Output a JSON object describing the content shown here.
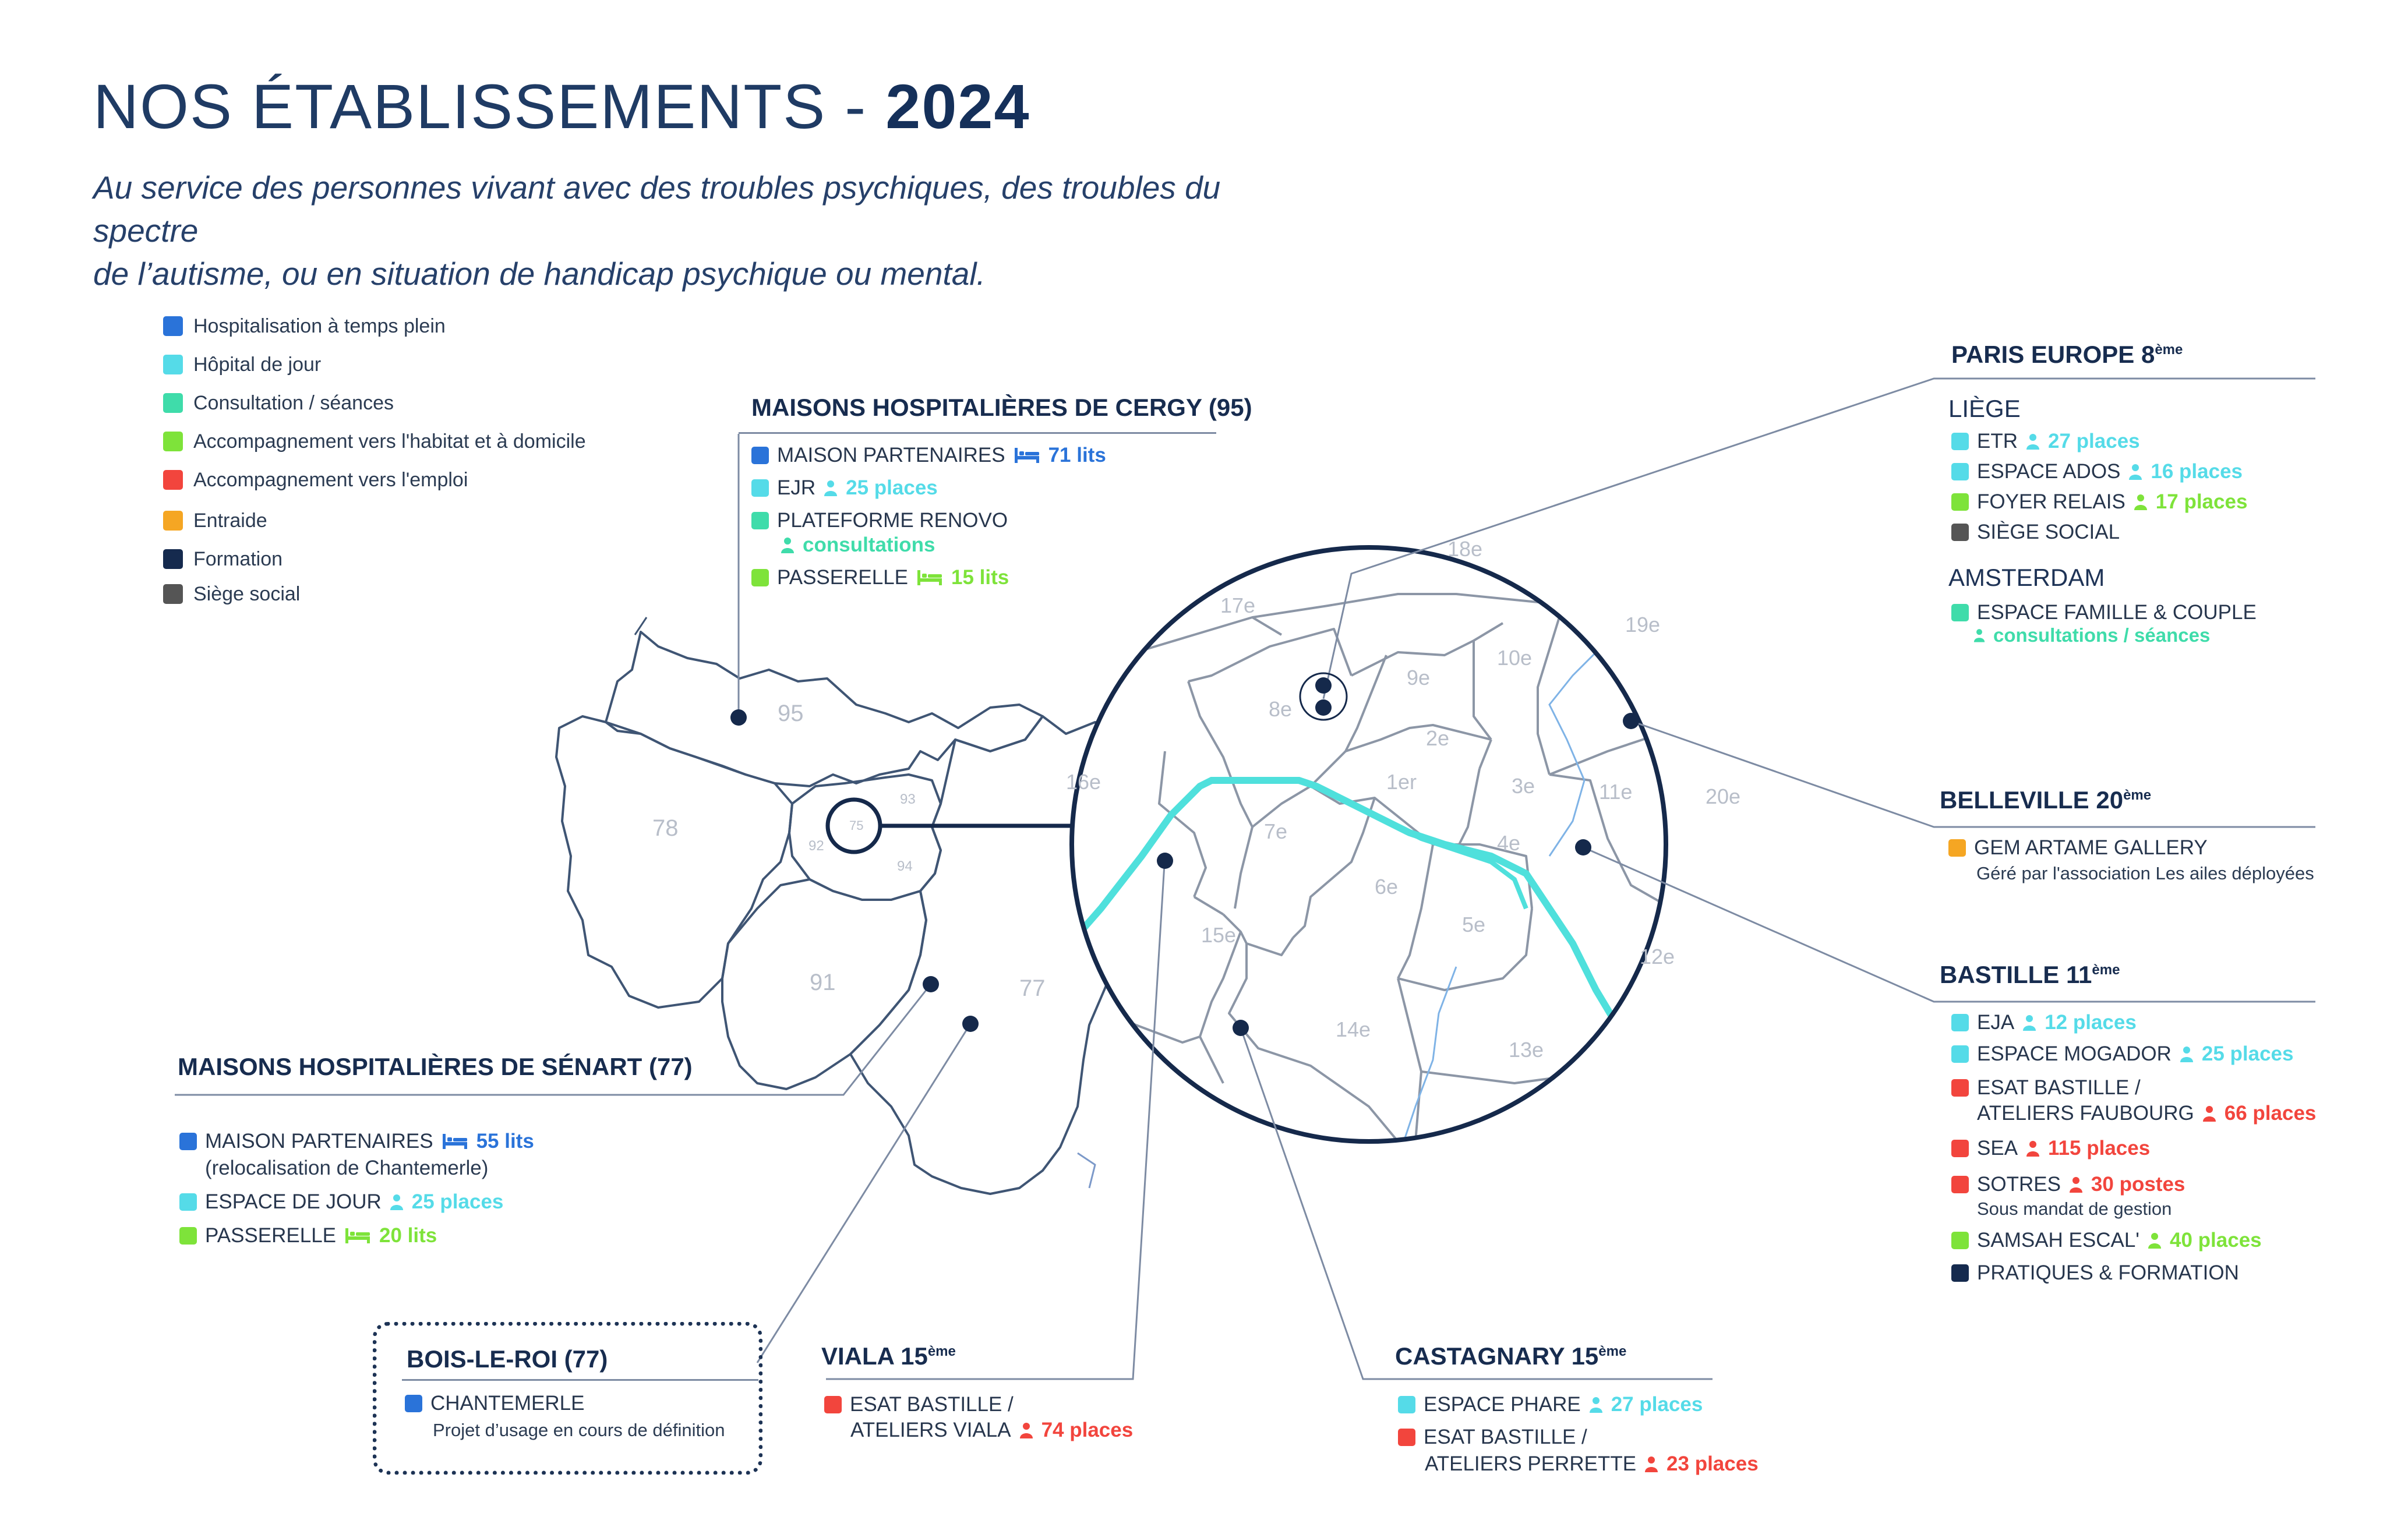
{
  "header": {
    "title_main": "NOS ÉTABLISSEMENTS - ",
    "title_year": "2024",
    "subtitle_line1": "Au service des personnes vivant avec des troubles psychiques, des troubles du spectre",
    "subtitle_line2": "de l’autisme, ou en situation de handicap psychique ou mental."
  },
  "legend": [
    {
      "label": "Hospitalisation à temps plein",
      "color": "#2a73d9"
    },
    {
      "label": "Hôpital de jour",
      "color": "#55dbe8"
    },
    {
      "label": "Consultation / séances",
      "color": "#3fdcaa"
    },
    {
      "label": "Accompagnement vers l'habitat et à domicile",
      "color": "#7ee33a"
    },
    {
      "label": "Accompagnement vers l'emploi",
      "color": "#f2453d"
    },
    {
      "label": "Entraide",
      "color": "#f5a623"
    },
    {
      "label": "Formation",
      "color": "#152a4e"
    },
    {
      "label": "Siège social",
      "color": "#555555"
    }
  ],
  "colors": {
    "accent_blue": "#2a73d9",
    "cyan": "#55dbe8",
    "teal": "#3fdcaa",
    "green": "#7ee33a",
    "red": "#f2453d",
    "orange": "#f5a623",
    "navy": "#152a4e",
    "grey": "#555555",
    "map_line": "#4a5c78",
    "map_fill": "#ffffff",
    "seine": "#4fe0dc",
    "label_grey": "#b8bec9"
  },
  "map_labels": {
    "departments": [
      "95",
      "78",
      "93",
      "92",
      "75",
      "94",
      "91",
      "77"
    ],
    "arrondissements": [
      "18e",
      "17e",
      "19e",
      "10e",
      "9e",
      "8e",
      "2e",
      "1er",
      "3e",
      "11e",
      "20e",
      "16e",
      "7e",
      "4e",
      "6e",
      "5e",
      "15e",
      "12e",
      "14e",
      "13e"
    ]
  },
  "cergy": {
    "title": "MAISONS HOSPITALIÈRES DE CERGY (95)",
    "items": [
      {
        "name": "MAISON PARTENAIRES",
        "capacity": "71 lits",
        "color": "#2a73d9",
        "icon": "bed-icon"
      },
      {
        "name": "EJR",
        "capacity": "25 places",
        "color": "#55dbe8",
        "icon": "person-icon"
      },
      {
        "name": "PLATEFORME RENOVO",
        "capacity": "consultations",
        "color": "#3fdcaa",
        "icon": "person-icon"
      },
      {
        "name": "PASSERELLE",
        "capacity": "15 lits",
        "color": "#7ee33a",
        "icon": "bed-icon"
      }
    ]
  },
  "paris_europe": {
    "title": "PARIS EUROPE 8",
    "title_sup": "ème",
    "liege": {
      "title": "LIÈGE",
      "items": [
        {
          "name": "ETR",
          "capacity": "27 places",
          "color": "#55dbe8"
        },
        {
          "name": "ESPACE ADOS",
          "capacity": "16 places",
          "color": "#55dbe8"
        },
        {
          "name": "FOYER RELAIS",
          "capacity": "17 places",
          "color": "#7ee33a"
        },
        {
          "name": "SIÈGE SOCIAL",
          "capacity": "",
          "color": "#555555"
        }
      ]
    },
    "amsterdam": {
      "title": "AMSTERDAM",
      "items": [
        {
          "name": "ESPACE FAMILLE & COUPLE",
          "capacity": "consultations / séances",
          "color": "#3fdcaa"
        }
      ]
    }
  },
  "belleville": {
    "title": "BELLEVILLE 20",
    "title_sup": "ème",
    "items": [
      {
        "name": "GEM ARTAME GALLERY",
        "note": "Géré par l'association Les ailes déployées",
        "color": "#f5a623"
      }
    ]
  },
  "bastille": {
    "title": "BASTILLE 11",
    "title_sup": "ème",
    "items": [
      {
        "name": "EJA",
        "capacity": "12 places",
        "color": "#55dbe8"
      },
      {
        "name": "ESPACE MOGADOR",
        "capacity": "25 places",
        "color": "#55dbe8"
      },
      {
        "name": "ESAT BASTILLE /",
        "name2": "ATELIERS FAUBOURG",
        "capacity": "66 places",
        "color": "#f2453d"
      },
      {
        "name": "SEA",
        "capacity": "115 places",
        "color": "#f2453d"
      },
      {
        "name": "SOTRES",
        "capacity": "30 postes",
        "note": "Sous mandat de gestion",
        "color": "#f2453d"
      },
      {
        "name": "SAMSAH ESCAL'",
        "capacity": "40 places",
        "color": "#7ee33a"
      },
      {
        "name": "PRATIQUES & FORMATION",
        "capacity": "",
        "color": "#152a4e"
      }
    ]
  },
  "senart": {
    "title": "MAISONS HOSPITALIÈRES DE SÉNART (77)",
    "items": [
      {
        "name": "MAISON PARTENAIRES",
        "capacity": "55 lits",
        "note": "(relocalisation de Chantemerle)",
        "color": "#2a73d9"
      },
      {
        "name": "ESPACE DE JOUR",
        "capacity": "25 places",
        "color": "#55dbe8"
      },
      {
        "name": "PASSERELLE",
        "capacity": "20 lits",
        "color": "#7ee33a"
      }
    ]
  },
  "boisleroi": {
    "title": "BOIS-LE-ROI (77)",
    "items": [
      {
        "name": "CHANTEMERLE",
        "note": "Projet d’usage en cours de définition",
        "color": "#2a73d9"
      }
    ]
  },
  "viala": {
    "title": "VIALA 15",
    "title_sup": "ème",
    "items": [
      {
        "name": "ESAT BASTILLE /",
        "name2": "ATELIERS VIALA",
        "capacity": "74 places",
        "color": "#f2453d"
      }
    ]
  },
  "castagnary": {
    "title": "CASTAGNARY 15",
    "title_sup": "ème",
    "items": [
      {
        "name": "ESPACE PHARE",
        "capacity": "27 places",
        "color": "#55dbe8"
      },
      {
        "name": "ESAT BASTILLE /",
        "name2": "ATELIERS PERRETTE",
        "capacity": "23 places",
        "color": "#f2453d"
      }
    ]
  }
}
